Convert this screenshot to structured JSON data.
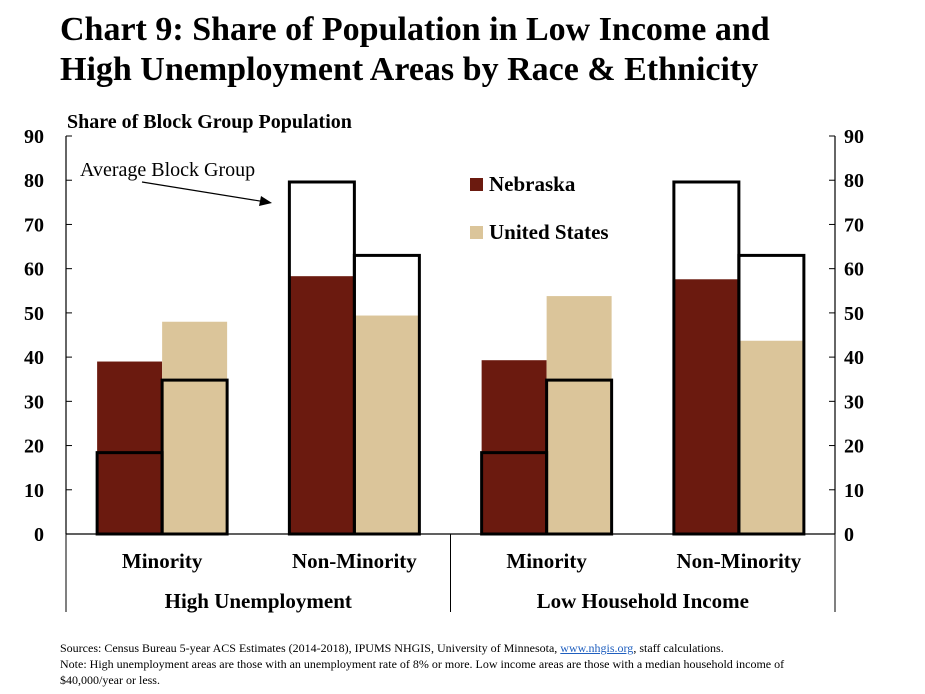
{
  "title_line1": "Chart 9: Share of Population in Low Income and",
  "title_line2": "High Unemployment Areas by Race & Ethnicity",
  "footer": {
    "sources_prefix": "Sources: Census Bureau 5-year ACS Estimates (2014-2018), IPUMS NHGIS, University of Minnesota, ",
    "sources_link": "www.nhgis.org",
    "sources_suffix": ", staff calculations.",
    "note_line1": "Note: High unemployment areas are those with an unemployment rate of 8% or more. Low income areas are those with a median household income of",
    "note_line2": "$40,000/year or less."
  },
  "colors": {
    "nebraska": "#6b1a0f",
    "united_states": "#dbc59a",
    "outline": "#000000"
  },
  "chart_data": {
    "type": "bar",
    "ylabel": "Share of Block Group Population",
    "ylim": [
      0,
      90
    ],
    "yticks": [
      0,
      10,
      20,
      30,
      40,
      50,
      60,
      70,
      80,
      90
    ],
    "categories": [
      "Minority",
      "Non-Minority",
      "Minority",
      "Non-Minority"
    ],
    "groups": [
      {
        "label": "High Unemployment",
        "categories": [
          "Minority",
          "Non-Minority"
        ]
      },
      {
        "label": "Low Household Income",
        "categories": [
          "Minority",
          "Non-Minority"
        ]
      }
    ],
    "series": [
      {
        "name": "Nebraska",
        "values": [
          39,
          58.3,
          39.3,
          57.6
        ]
      },
      {
        "name": "United States",
        "values": [
          48,
          49.4,
          53.8,
          43.7
        ]
      }
    ],
    "average_block_group": {
      "label": "Average Block Group",
      "Nebraska": [
        18.4,
        79.6,
        18.4,
        79.6
      ],
      "United States": [
        34.8,
        63,
        34.8,
        63
      ]
    },
    "legend": "upper-center",
    "grid": false
  }
}
